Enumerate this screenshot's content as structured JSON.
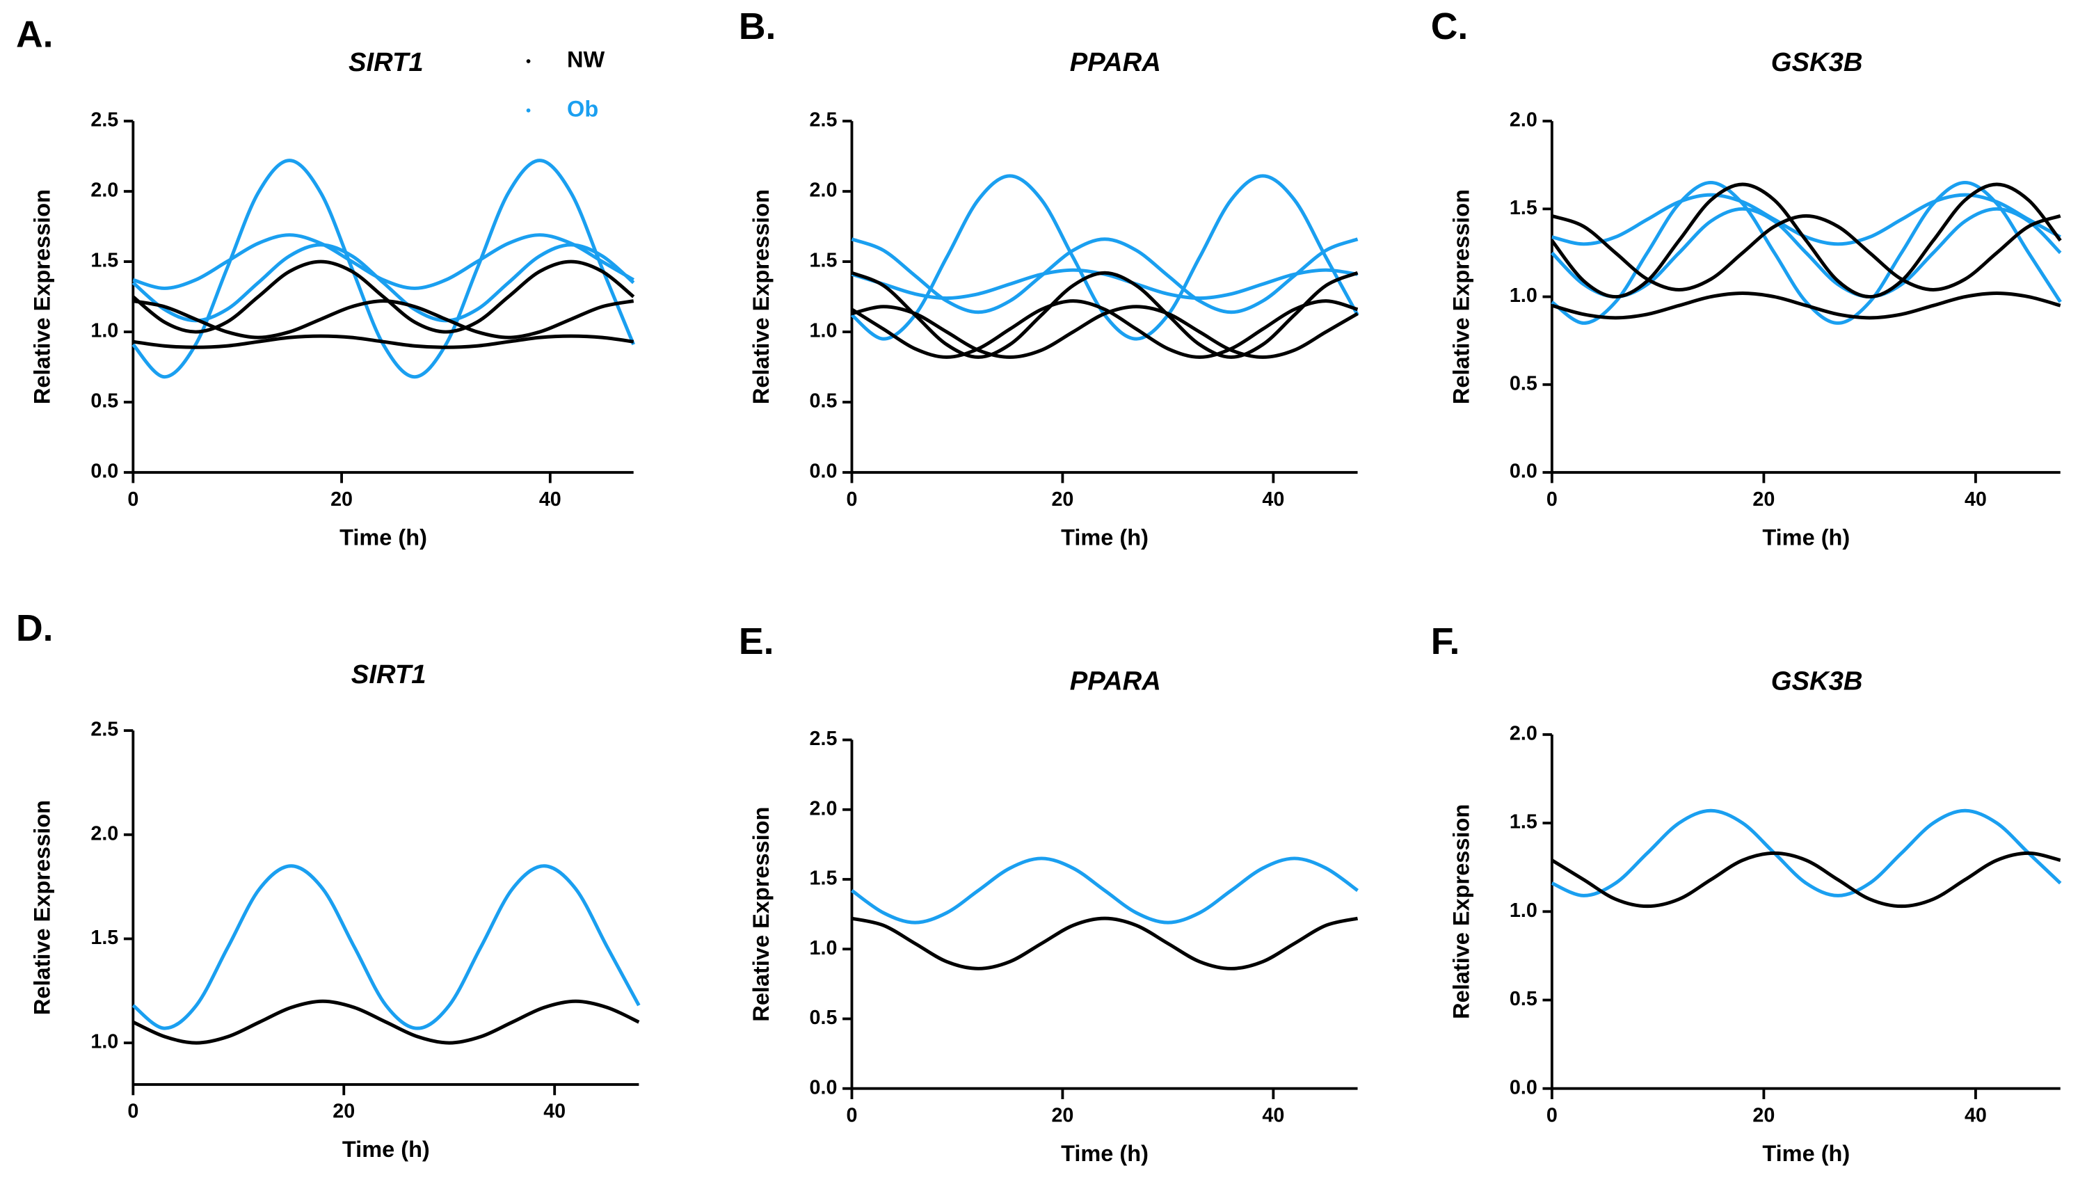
{
  "chart_data": [
    {
      "type": "line",
      "label": "A.",
      "title": "SIRT1",
      "xlabel": "Time (h)",
      "ylabel": "Relative Expression",
      "legend": [
        {
          "name": "NW",
          "color": "#000000"
        },
        {
          "name": "Ob",
          "color": "#1a9ff0"
        }
      ],
      "x": [
        0,
        3,
        6,
        9,
        12,
        15,
        18,
        21,
        24,
        27,
        30,
        33,
        36,
        39,
        42,
        45,
        48
      ],
      "xlim": [
        0,
        48
      ],
      "xticks": [
        0,
        20,
        40
      ],
      "ylim": [
        0,
        2.5
      ],
      "yticks": [
        {
          "value": 0,
          "label": "0.0"
        },
        0.5,
        {
          "value": 1,
          "label": "1.0"
        },
        1.5,
        {
          "value": 2,
          "label": "2.0"
        },
        2.5
      ],
      "series": [
        {
          "color": "#1a9ff0",
          "values": [
            0.91,
            0.68,
            0.91,
            1.45,
            1.99,
            2.22,
            1.99,
            1.45,
            0.91,
            0.68,
            0.91,
            1.45,
            1.99,
            2.22,
            1.99,
            1.45,
            0.91
          ]
        },
        {
          "color": "#1a9ff0",
          "values": [
            1.37,
            1.31,
            1.37,
            1.5,
            1.63,
            1.69,
            1.63,
            1.5,
            1.37,
            1.31,
            1.37,
            1.5,
            1.63,
            1.69,
            1.63,
            1.5,
            1.37
          ]
        },
        {
          "color": "#1a9ff0",
          "values": [
            1.35,
            1.16,
            1.08,
            1.16,
            1.35,
            1.54,
            1.62,
            1.54,
            1.35,
            1.16,
            1.08,
            1.16,
            1.35,
            1.54,
            1.62,
            1.54,
            1.35
          ]
        },
        {
          "color": "#000000",
          "values": [
            1.25,
            1.07,
            1.0,
            1.07,
            1.25,
            1.43,
            1.5,
            1.43,
            1.25,
            1.07,
            1.0,
            1.07,
            1.25,
            1.43,
            1.5,
            1.43,
            1.25
          ]
        },
        {
          "color": "#000000",
          "values": [
            1.22,
            1.18,
            1.09,
            1.0,
            0.96,
            1.0,
            1.09,
            1.18,
            1.22,
            1.18,
            1.09,
            1.0,
            0.96,
            1.0,
            1.09,
            1.18,
            1.22
          ]
        },
        {
          "color": "#000000",
          "values": [
            0.93,
            0.9,
            0.89,
            0.9,
            0.93,
            0.96,
            0.97,
            0.96,
            0.93,
            0.9,
            0.89,
            0.9,
            0.93,
            0.96,
            0.97,
            0.96,
            0.93
          ]
        }
      ]
    },
    {
      "type": "line",
      "label": "B.",
      "title": "PPARA",
      "xlabel": "Time (h)",
      "ylabel": "Relative Expression",
      "x": [
        0,
        3,
        6,
        9,
        12,
        15,
        18,
        21,
        24,
        27,
        30,
        33,
        36,
        39,
        42,
        45,
        48
      ],
      "xlim": [
        0,
        48
      ],
      "xticks": [
        0,
        20,
        40
      ],
      "ylim": [
        0,
        2.5
      ],
      "yticks": [
        {
          "value": 0,
          "label": "0.0"
        },
        0.5,
        {
          "value": 1,
          "label": "1.0"
        },
        1.5,
        {
          "value": 2,
          "label": "2.0"
        },
        2.5
      ],
      "series": [
        {
          "color": "#1a9ff0",
          "values": [
            1.12,
            0.95,
            1.12,
            1.53,
            1.94,
            2.11,
            1.94,
            1.53,
            1.12,
            0.95,
            1.12,
            1.53,
            1.94,
            2.11,
            1.94,
            1.53,
            1.12
          ]
        },
        {
          "color": "#1a9ff0",
          "values": [
            1.66,
            1.58,
            1.4,
            1.22,
            1.14,
            1.22,
            1.4,
            1.58,
            1.66,
            1.58,
            1.4,
            1.22,
            1.14,
            1.22,
            1.4,
            1.58,
            1.66
          ]
        },
        {
          "color": "#1a9ff0",
          "values": [
            1.41,
            1.34,
            1.27,
            1.24,
            1.27,
            1.34,
            1.41,
            1.44,
            1.41,
            1.34,
            1.27,
            1.24,
            1.27,
            1.34,
            1.41,
            1.44,
            1.41
          ]
        },
        {
          "color": "#000000",
          "values": [
            1.42,
            1.33,
            1.12,
            0.91,
            0.82,
            0.91,
            1.12,
            1.33,
            1.42,
            1.33,
            1.12,
            0.91,
            0.82,
            0.91,
            1.12,
            1.33,
            1.42
          ]
        },
        {
          "color": "#000000",
          "values": [
            1.16,
            1.02,
            0.88,
            0.82,
            0.88,
            1.02,
            1.16,
            1.22,
            1.16,
            1.02,
            0.88,
            0.82,
            0.88,
            1.02,
            1.16,
            1.22,
            1.16
          ]
        },
        {
          "color": "#000000",
          "values": [
            1.13,
            1.18,
            1.13,
            1.0,
            0.87,
            0.82,
            0.87,
            1.0,
            1.13,
            1.18,
            1.13,
            1.0,
            0.87,
            0.82,
            0.87,
            1.0,
            1.13
          ]
        }
      ]
    },
    {
      "type": "line",
      "label": "C.",
      "title": "GSK3B",
      "xlabel": "Time (h)",
      "ylabel": "Relative Expression",
      "x": [
        0,
        3,
        6,
        9,
        12,
        15,
        18,
        21,
        24,
        27,
        30,
        33,
        36,
        39,
        42,
        45,
        48
      ],
      "xlim": [
        0,
        48
      ],
      "xticks": [
        0,
        20,
        40
      ],
      "ylim": [
        0,
        2
      ],
      "yticks": [
        {
          "value": 0,
          "label": "0.0"
        },
        0.5,
        {
          "value": 1,
          "label": "1.0"
        },
        1.5,
        {
          "value": 2,
          "label": "2.0"
        }
      ],
      "series": [
        {
          "color": "#1a9ff0",
          "values": [
            0.97,
            0.85,
            0.97,
            1.25,
            1.53,
            1.65,
            1.53,
            1.25,
            0.97,
            0.85,
            0.97,
            1.25,
            1.53,
            1.65,
            1.53,
            1.25,
            0.97
          ]
        },
        {
          "color": "#1a9ff0",
          "values": [
            1.34,
            1.3,
            1.34,
            1.44,
            1.54,
            1.58,
            1.54,
            1.44,
            1.34,
            1.3,
            1.34,
            1.44,
            1.54,
            1.58,
            1.54,
            1.44,
            1.34
          ]
        },
        {
          "color": "#1a9ff0",
          "values": [
            1.25,
            1.07,
            1.0,
            1.07,
            1.25,
            1.43,
            1.5,
            1.43,
            1.25,
            1.07,
            1.0,
            1.07,
            1.25,
            1.43,
            1.5,
            1.43,
            1.25
          ]
        },
        {
          "color": "#000000",
          "values": [
            1.32,
            1.09,
            1.0,
            1.09,
            1.32,
            1.55,
            1.64,
            1.55,
            1.32,
            1.09,
            1.0,
            1.09,
            1.32,
            1.55,
            1.64,
            1.55,
            1.32
          ]
        },
        {
          "color": "#000000",
          "values": [
            1.46,
            1.4,
            1.25,
            1.1,
            1.04,
            1.1,
            1.25,
            1.4,
            1.46,
            1.4,
            1.25,
            1.1,
            1.04,
            1.1,
            1.25,
            1.4,
            1.46
          ]
        },
        {
          "color": "#000000",
          "values": [
            0.95,
            0.9,
            0.88,
            0.9,
            0.95,
            1.0,
            1.02,
            1.0,
            0.95,
            0.9,
            0.88,
            0.9,
            0.95,
            1.0,
            1.02,
            1.0,
            0.95
          ]
        }
      ]
    },
    {
      "type": "line",
      "label": "D.",
      "title": "SIRT1",
      "xlabel": "Time (h)",
      "ylabel": "Relative Expression",
      "x": [
        0,
        3,
        6,
        9,
        12,
        15,
        18,
        21,
        24,
        27,
        30,
        33,
        36,
        39,
        42,
        45,
        48
      ],
      "xlim": [
        0,
        48
      ],
      "xticks": [
        0,
        20,
        40
      ],
      "ylim": [
        0.8,
        2.5
      ],
      "yticks": [
        {
          "value": 1,
          "label": "1.0"
        },
        1.5,
        {
          "value": 2,
          "label": "2.0"
        },
        2.5
      ],
      "series": [
        {
          "color": "#1a9ff0",
          "values": [
            1.18,
            1.07,
            1.18,
            1.46,
            1.74,
            1.85,
            1.74,
            1.46,
            1.18,
            1.07,
            1.18,
            1.46,
            1.74,
            1.85,
            1.74,
            1.46,
            1.18
          ]
        },
        {
          "color": "#000000",
          "values": [
            1.1,
            1.03,
            1.0,
            1.03,
            1.1,
            1.17,
            1.2,
            1.17,
            1.1,
            1.03,
            1.0,
            1.03,
            1.1,
            1.17,
            1.2,
            1.17,
            1.1
          ]
        }
      ]
    },
    {
      "type": "line",
      "label": "E.",
      "title": "PPARA",
      "xlabel": "Time (h)",
      "ylabel": "Relative Expression",
      "x": [
        0,
        3,
        6,
        9,
        12,
        15,
        18,
        21,
        24,
        27,
        30,
        33,
        36,
        39,
        42,
        45,
        48
      ],
      "xlim": [
        0,
        48
      ],
      "xticks": [
        0,
        20,
        40
      ],
      "ylim": [
        0,
        2.5
      ],
      "yticks": [
        {
          "value": 0,
          "label": "0.0"
        },
        0.5,
        {
          "value": 1,
          "label": "1.0"
        },
        1.5,
        {
          "value": 2,
          "label": "2.0"
        },
        2.5
      ],
      "series": [
        {
          "color": "#1a9ff0",
          "values": [
            1.42,
            1.26,
            1.19,
            1.26,
            1.42,
            1.58,
            1.65,
            1.58,
            1.42,
            1.26,
            1.19,
            1.26,
            1.42,
            1.58,
            1.65,
            1.58,
            1.42
          ]
        },
        {
          "color": "#000000",
          "values": [
            1.22,
            1.17,
            1.04,
            0.91,
            0.86,
            0.91,
            1.04,
            1.17,
            1.22,
            1.17,
            1.04,
            0.91,
            0.86,
            0.91,
            1.04,
            1.17,
            1.22
          ]
        }
      ]
    },
    {
      "type": "line",
      "label": "F.",
      "title": "GSK3B",
      "xlabel": "Time (h)",
      "ylabel": "Relative Expression",
      "x": [
        0,
        3,
        6,
        9,
        12,
        15,
        18,
        21,
        24,
        27,
        30,
        33,
        36,
        39,
        42,
        45,
        48
      ],
      "xlim": [
        0,
        48
      ],
      "xticks": [
        0,
        20,
        40
      ],
      "ylim": [
        0,
        2
      ],
      "yticks": [
        {
          "value": 0,
          "label": "0.0"
        },
        0.5,
        {
          "value": 1,
          "label": "1.0"
        },
        1.5,
        {
          "value": 2,
          "label": "2.0"
        }
      ],
      "series": [
        {
          "color": "#1a9ff0",
          "values": [
            1.16,
            1.09,
            1.16,
            1.33,
            1.5,
            1.57,
            1.5,
            1.33,
            1.16,
            1.09,
            1.16,
            1.33,
            1.5,
            1.57,
            1.5,
            1.33,
            1.16
          ]
        },
        {
          "color": "#000000",
          "values": [
            1.29,
            1.18,
            1.07,
            1.03,
            1.07,
            1.18,
            1.29,
            1.33,
            1.29,
            1.18,
            1.07,
            1.03,
            1.07,
            1.18,
            1.29,
            1.33,
            1.29
          ]
        }
      ]
    }
  ]
}
